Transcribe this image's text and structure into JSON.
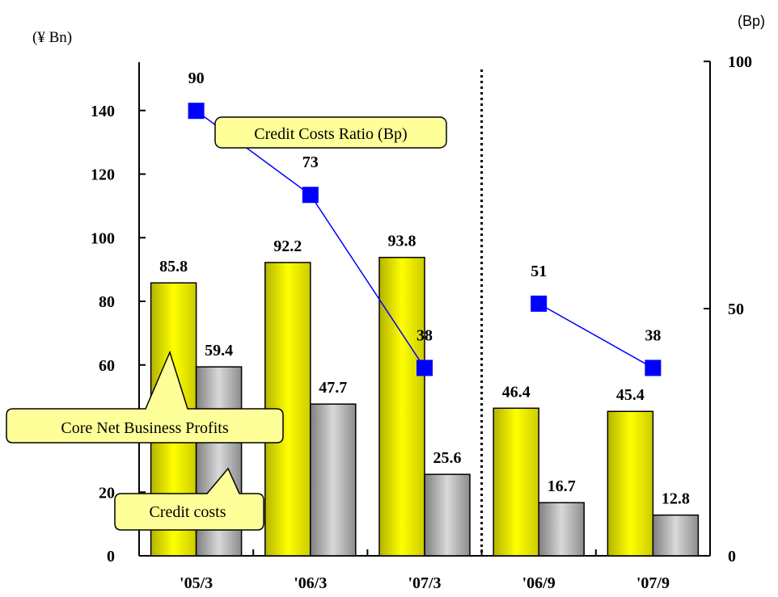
{
  "chart_data": {
    "type": "bar",
    "categories": [
      "'05/3",
      "'06/3",
      "'07/3",
      "'06/9",
      "'07/9"
    ],
    "series": [
      {
        "values": [
          85.8,
          92.2,
          93.8,
          46.4,
          45.4
        ],
        "color": "#FFFF00",
        "kind": "bar",
        "axis": "left"
      },
      {
        "values": [
          59.4,
          47.7,
          25.6,
          16.7,
          12.8
        ],
        "color": "#A6A6A6",
        "kind": "bar",
        "axis": "left"
      },
      {
        "values": [
          90,
          73,
          38,
          51,
          38
        ],
        "color": "#0000FF",
        "kind": "line",
        "axis": "right",
        "line_groups": [
          [
            0,
            1,
            2
          ],
          [
            3,
            4
          ]
        ]
      }
    ],
    "left_axis": {
      "unit_label": "(¥ Bn)",
      "ylim": [
        0,
        160
      ],
      "ticks": [
        "0",
        "20",
        "",
        "60",
        "80",
        "100",
        "120",
        "140"
      ],
      "tick_values": [
        0,
        20,
        40,
        60,
        80,
        100,
        120,
        140
      ]
    },
    "right_axis": {
      "unit_label": "(Bp)",
      "ylim": [
        0,
        100
      ],
      "ticks": [
        "0",
        "50",
        "100"
      ],
      "tick_values": [
        0,
        50,
        100
      ]
    },
    "divider": "dotted vertical line between '07/3 and '06/9",
    "callouts": {
      "core_net": "Core Net Business Profits",
      "credit_costs": "Credit costs",
      "ratio": "Credit Costs Ratio (Bp)"
    },
    "legend": "callouts"
  }
}
